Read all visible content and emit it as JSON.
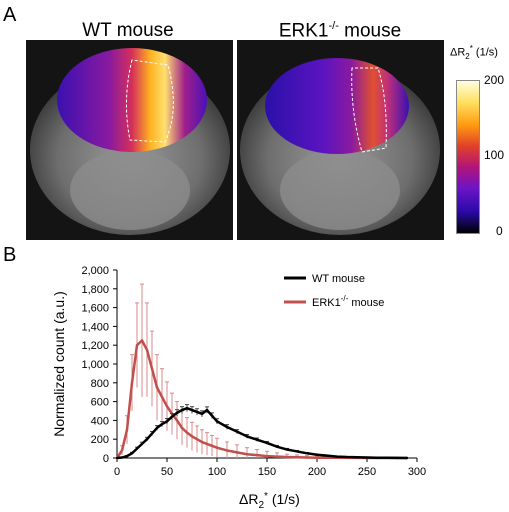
{
  "panel_a": {
    "letter": "A",
    "left_title": "WT mouse",
    "right_title_base": "ERK1",
    "right_title_sup": "-/-",
    "right_title_rest": " mouse",
    "colorbar": {
      "label": "ΔR2* (1/s)",
      "label_main": "ΔR",
      "label_sub": "2",
      "label_sup": "*",
      "label_rest": " (1/s)",
      "ticks": [
        "200",
        "100",
        "0"
      ],
      "colors": [
        "#ffffe0",
        "#ffe060",
        "#ff9a10",
        "#e0402a",
        "#b0147a",
        "#6a14c8",
        "#2a0aa8",
        "#000000"
      ]
    }
  },
  "panel_b": {
    "letter": "B"
  },
  "chart_data": {
    "type": "line",
    "title": "",
    "xlabel": "ΔR2* (1/s)",
    "xlabel_parts": {
      "main": "ΔR",
      "sub": "2",
      "sup": "*",
      "rest": " (1/s)"
    },
    "ylabel": "Normalized count (a.u.)",
    "xlim": [
      0,
      300
    ],
    "ylim": [
      0,
      2000
    ],
    "x_ticks": [
      "0",
      "50",
      "100",
      "150",
      "200",
      "250",
      "300"
    ],
    "y_ticks": [
      "0",
      "200",
      "400",
      "600",
      "800",
      "1,000",
      "1,200",
      "1,400",
      "1,600",
      "1,800",
      "2,000"
    ],
    "grid": false,
    "legend_position": "top-right",
    "series": [
      {
        "name": "WT mouse",
        "color": "#000000",
        "x": [
          0,
          5,
          10,
          15,
          20,
          25,
          30,
          35,
          40,
          45,
          50,
          55,
          60,
          65,
          70,
          75,
          80,
          85,
          90,
          95,
          100,
          110,
          120,
          130,
          140,
          150,
          160,
          170,
          180,
          190,
          200,
          210,
          220,
          230,
          240,
          250,
          260,
          270,
          280,
          290
        ],
        "y": [
          0,
          5,
          20,
          50,
          100,
          150,
          200,
          260,
          320,
          360,
          390,
          440,
          480,
          510,
          530,
          510,
          490,
          470,
          510,
          450,
          390,
          330,
          280,
          230,
          195,
          160,
          120,
          90,
          70,
          50,
          35,
          25,
          15,
          10,
          8,
          5,
          3,
          2,
          1,
          0
        ],
        "error": [
          0,
          3,
          6,
          10,
          15,
          18,
          20,
          22,
          25,
          28,
          30,
          32,
          34,
          36,
          38,
          36,
          34,
          32,
          34,
          30,
          28,
          25,
          22,
          20,
          18,
          16,
          14,
          12,
          10,
          8,
          7,
          6,
          5,
          4,
          3,
          3,
          2,
          2,
          1,
          0
        ]
      },
      {
        "name": "ERK1-/- mouse",
        "color": "#c0504d",
        "x": [
          0,
          5,
          10,
          15,
          20,
          25,
          30,
          35,
          40,
          45,
          50,
          55,
          60,
          65,
          70,
          75,
          80,
          85,
          90,
          95,
          100,
          110,
          120,
          130,
          140,
          150,
          160,
          170,
          180,
          190,
          200,
          220,
          240,
          260,
          280,
          290
        ],
        "y": [
          0,
          80,
          300,
          800,
          1200,
          1250,
          1150,
          950,
          750,
          650,
          550,
          470,
          400,
          320,
          270,
          230,
          200,
          170,
          150,
          130,
          110,
          80,
          60,
          40,
          30,
          20,
          15,
          10,
          8,
          5,
          3,
          2,
          1,
          0,
          0,
          0
        ],
        "error": [
          0,
          50,
          150,
          300,
          450,
          600,
          500,
          400,
          350,
          300,
          260,
          220,
          200,
          180,
          160,
          150,
          140,
          130,
          120,
          110,
          100,
          90,
          80,
          70,
          60,
          50,
          40,
          30,
          25,
          20,
          15,
          10,
          8,
          5,
          3,
          0
        ]
      }
    ]
  }
}
